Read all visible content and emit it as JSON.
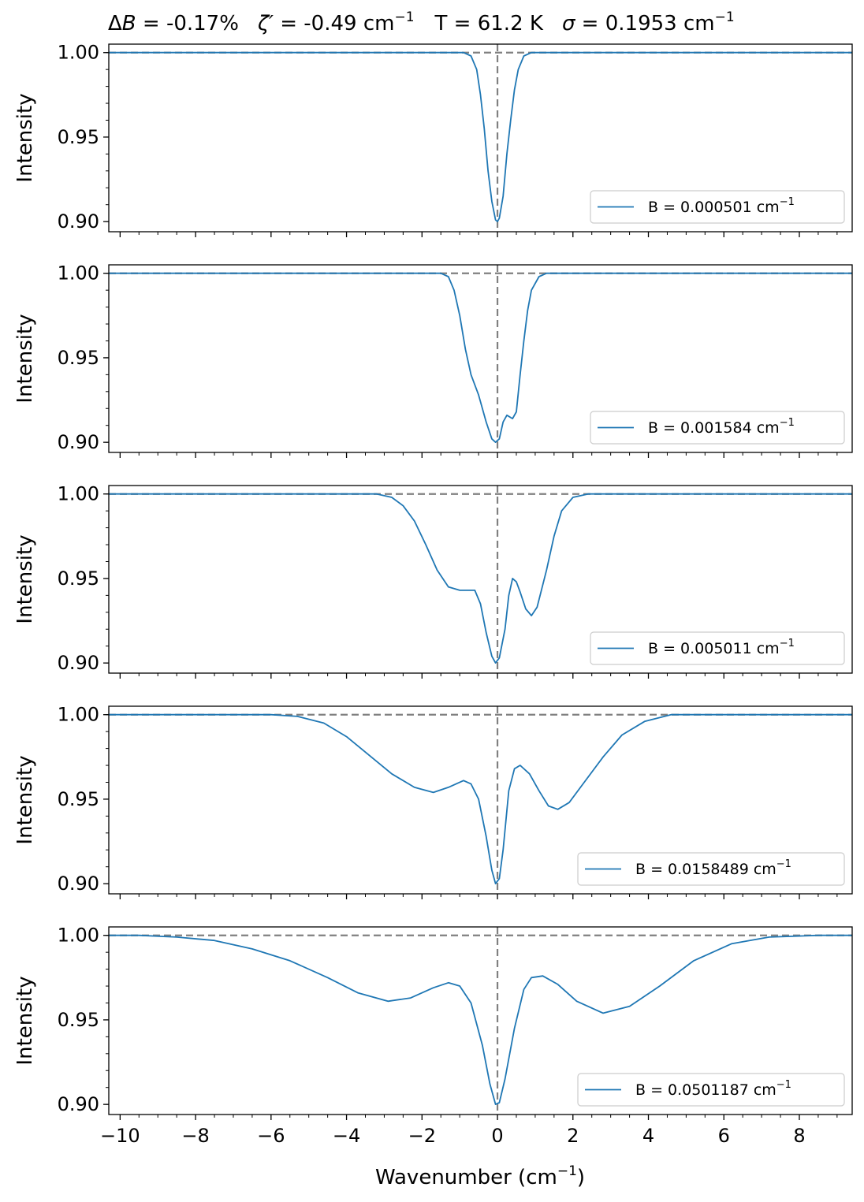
{
  "title": {
    "dB_sym": "Δ",
    "dB_var": "B",
    "dB_val": " = -0.17%",
    "zeta_sym": "ζ′",
    "zeta_val": " = -0.49 cm",
    "zeta_exp": "−1",
    "temp": "T = 61.2 K",
    "sigma_sym": "σ",
    "sigma_val": " = 0.1953 cm",
    "sigma_exp": "−1"
  },
  "colors": {
    "line": "#1f77b4",
    "reference": "#808080",
    "axes": "#000000"
  },
  "chart_data": {
    "type": "line",
    "xlabel_main": "Wavenumber (cm",
    "xlabel_exp": "−1",
    "xlabel_close": ")",
    "ylabel": "Intensity",
    "xlim": [
      -10.3,
      9.4
    ],
    "ylim": [
      0.894,
      1.005
    ],
    "xticks": [
      -10,
      -8,
      -6,
      -4,
      -2,
      0,
      2,
      4,
      6,
      8
    ],
    "xtick_labels": [
      "−10",
      "−8",
      "−6",
      "−4",
      "−2",
      "0",
      "2",
      "4",
      "6",
      "8"
    ],
    "yticks": [
      1.0,
      0.95,
      0.9
    ],
    "ytick_labels": [
      "1.00",
      "0.95",
      "0.90"
    ],
    "reference_lines": {
      "y": 1.0,
      "x": 0
    },
    "grid": false,
    "legend_position": "lower-right",
    "panels": [
      {
        "legend_prefix": "B = 0.000501 cm",
        "legend_exp": "−1",
        "points": [
          [
            -10.3,
            1.0
          ],
          [
            -0.9,
            1.0
          ],
          [
            -0.7,
            0.998
          ],
          [
            -0.55,
            0.99
          ],
          [
            -0.45,
            0.975
          ],
          [
            -0.35,
            0.955
          ],
          [
            -0.25,
            0.93
          ],
          [
            -0.15,
            0.912
          ],
          [
            -0.05,
            0.901
          ],
          [
            0.0,
            0.9
          ],
          [
            0.05,
            0.902
          ],
          [
            0.15,
            0.915
          ],
          [
            0.25,
            0.94
          ],
          [
            0.35,
            0.96
          ],
          [
            0.45,
            0.978
          ],
          [
            0.55,
            0.99
          ],
          [
            0.7,
            0.998
          ],
          [
            0.9,
            1.0
          ],
          [
            9.4,
            1.0
          ]
        ]
      },
      {
        "legend_prefix": "B = 0.001584 cm",
        "legend_exp": "−1",
        "points": [
          [
            -10.3,
            1.0
          ],
          [
            -1.5,
            1.0
          ],
          [
            -1.3,
            0.998
          ],
          [
            -1.15,
            0.99
          ],
          [
            -1.0,
            0.975
          ],
          [
            -0.85,
            0.955
          ],
          [
            -0.7,
            0.94
          ],
          [
            -0.5,
            0.928
          ],
          [
            -0.3,
            0.912
          ],
          [
            -0.15,
            0.902
          ],
          [
            -0.05,
            0.9
          ],
          [
            0.05,
            0.902
          ],
          [
            0.15,
            0.912
          ],
          [
            0.25,
            0.916
          ],
          [
            0.4,
            0.914
          ],
          [
            0.5,
            0.918
          ],
          [
            0.6,
            0.94
          ],
          [
            0.7,
            0.96
          ],
          [
            0.8,
            0.978
          ],
          [
            0.9,
            0.99
          ],
          [
            1.1,
            0.998
          ],
          [
            1.3,
            1.0
          ],
          [
            9.4,
            1.0
          ]
        ]
      },
      {
        "legend_prefix": "B = 0.005011 cm",
        "legend_exp": "−1",
        "points": [
          [
            -10.3,
            1.0
          ],
          [
            -3.2,
            1.0
          ],
          [
            -2.8,
            0.998
          ],
          [
            -2.5,
            0.993
          ],
          [
            -2.2,
            0.984
          ],
          [
            -1.9,
            0.97
          ],
          [
            -1.6,
            0.955
          ],
          [
            -1.3,
            0.945
          ],
          [
            -1.0,
            0.943
          ],
          [
            -0.6,
            0.943
          ],
          [
            -0.45,
            0.935
          ],
          [
            -0.3,
            0.918
          ],
          [
            -0.15,
            0.904
          ],
          [
            -0.05,
            0.9
          ],
          [
            0.05,
            0.903
          ],
          [
            0.2,
            0.92
          ],
          [
            0.3,
            0.94
          ],
          [
            0.4,
            0.95
          ],
          [
            0.5,
            0.948
          ],
          [
            0.6,
            0.942
          ],
          [
            0.75,
            0.932
          ],
          [
            0.9,
            0.928
          ],
          [
            1.05,
            0.933
          ],
          [
            1.3,
            0.955
          ],
          [
            1.5,
            0.975
          ],
          [
            1.7,
            0.99
          ],
          [
            2.0,
            0.998
          ],
          [
            2.4,
            1.0
          ],
          [
            9.4,
            1.0
          ]
        ]
      },
      {
        "legend_prefix": "B = 0.0158489 cm",
        "legend_exp": "−1",
        "points": [
          [
            -10.3,
            1.0
          ],
          [
            -6.0,
            1.0
          ],
          [
            -5.3,
            0.999
          ],
          [
            -4.6,
            0.995
          ],
          [
            -4.0,
            0.987
          ],
          [
            -3.4,
            0.976
          ],
          [
            -2.8,
            0.965
          ],
          [
            -2.2,
            0.957
          ],
          [
            -1.7,
            0.954
          ],
          [
            -1.3,
            0.957
          ],
          [
            -0.9,
            0.961
          ],
          [
            -0.7,
            0.959
          ],
          [
            -0.5,
            0.95
          ],
          [
            -0.3,
            0.928
          ],
          [
            -0.15,
            0.908
          ],
          [
            -0.05,
            0.9
          ],
          [
            0.05,
            0.903
          ],
          [
            0.15,
            0.92
          ],
          [
            0.3,
            0.955
          ],
          [
            0.45,
            0.968
          ],
          [
            0.6,
            0.97
          ],
          [
            0.85,
            0.965
          ],
          [
            1.1,
            0.955
          ],
          [
            1.35,
            0.946
          ],
          [
            1.6,
            0.944
          ],
          [
            1.9,
            0.948
          ],
          [
            2.3,
            0.96
          ],
          [
            2.8,
            0.975
          ],
          [
            3.3,
            0.988
          ],
          [
            3.9,
            0.996
          ],
          [
            4.6,
            1.0
          ],
          [
            9.4,
            1.0
          ]
        ]
      },
      {
        "legend_prefix": "B = 0.0501187 cm",
        "legend_exp": "−1",
        "points": [
          [
            -10.3,
            1.0
          ],
          [
            -9.5,
            1.0
          ],
          [
            -8.5,
            0.999
          ],
          [
            -7.5,
            0.997
          ],
          [
            -6.5,
            0.992
          ],
          [
            -5.5,
            0.985
          ],
          [
            -4.5,
            0.975
          ],
          [
            -3.7,
            0.966
          ],
          [
            -2.9,
            0.961
          ],
          [
            -2.3,
            0.963
          ],
          [
            -1.7,
            0.969
          ],
          [
            -1.3,
            0.972
          ],
          [
            -1.0,
            0.97
          ],
          [
            -0.7,
            0.96
          ],
          [
            -0.4,
            0.935
          ],
          [
            -0.2,
            0.912
          ],
          [
            -0.05,
            0.9
          ],
          [
            0.05,
            0.901
          ],
          [
            0.2,
            0.915
          ],
          [
            0.45,
            0.945
          ],
          [
            0.7,
            0.968
          ],
          [
            0.9,
            0.975
          ],
          [
            1.2,
            0.976
          ],
          [
            1.6,
            0.971
          ],
          [
            2.1,
            0.961
          ],
          [
            2.8,
            0.954
          ],
          [
            3.5,
            0.958
          ],
          [
            4.3,
            0.97
          ],
          [
            5.2,
            0.985
          ],
          [
            6.2,
            0.995
          ],
          [
            7.2,
            0.999
          ],
          [
            8.5,
            1.0
          ],
          [
            9.4,
            1.0
          ]
        ]
      }
    ]
  }
}
